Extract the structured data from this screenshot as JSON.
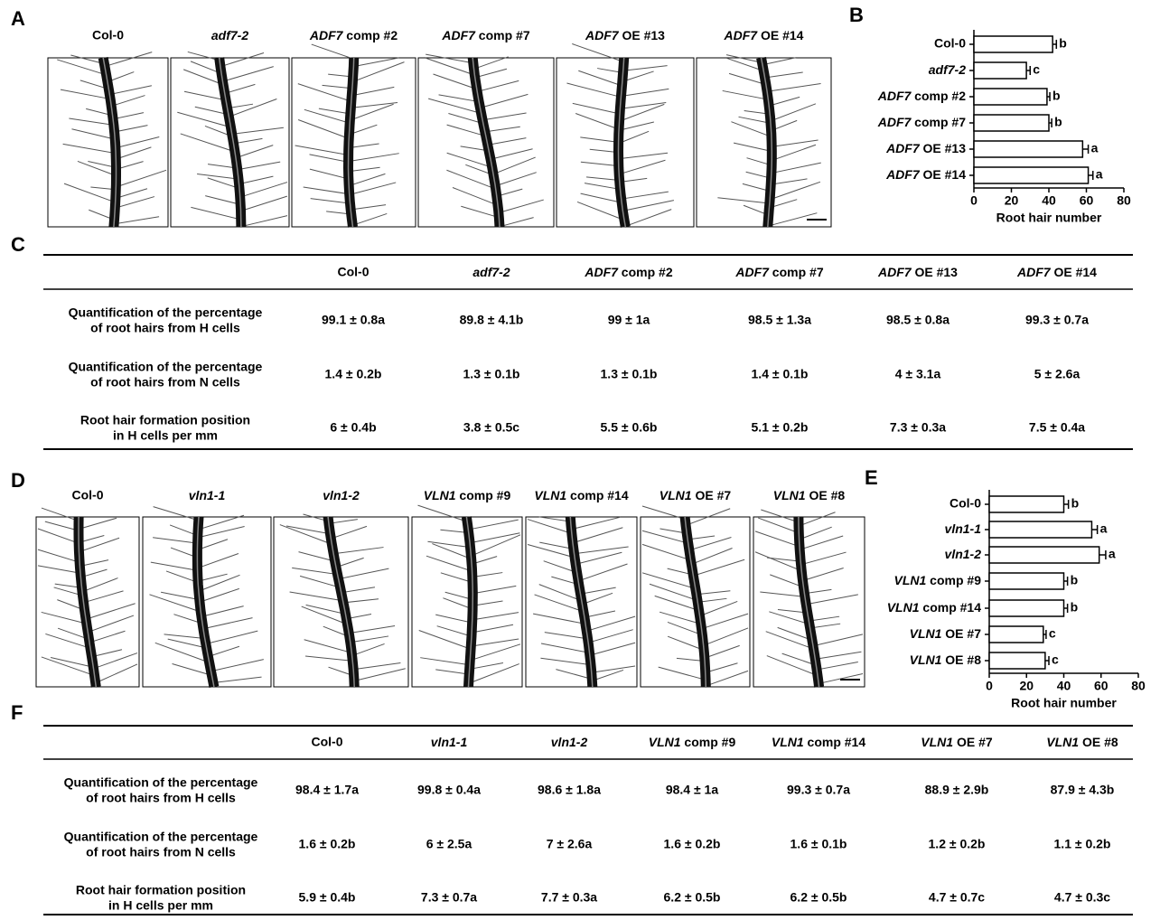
{
  "panel_a": {
    "label": "A",
    "captions": [
      "Col-0",
      "adf7-2",
      "ADF7 comp #2",
      "ADF7 comp #7",
      "ADF7 OE #13",
      "ADF7 OE #14"
    ]
  },
  "panel_b": {
    "label": "B",
    "chart_data": {
      "type": "hbar",
      "categories": [
        "Col-0",
        "adf7-2",
        "ADF7 comp #2",
        "ADF7 comp #7",
        "ADF7 OE #13",
        "ADF7 OE #14"
      ],
      "values": [
        42,
        28,
        39,
        40,
        58,
        61
      ],
      "errors": [
        2,
        2,
        1.5,
        1.5,
        3,
        2.5
      ],
      "letters": [
        "b",
        "c",
        "b",
        "b",
        "a",
        "a"
      ],
      "xlim": [
        0,
        80
      ],
      "xticks": [
        0,
        20,
        40,
        60,
        80
      ],
      "xlabel": "Root hair number",
      "color": "#ffffff"
    }
  },
  "panel_c": {
    "label": "C",
    "table": {
      "header": [
        "Col-0",
        "adf7-2",
        "ADF7 comp #2",
        "ADF7 comp #7",
        "ADF7 OE #13",
        "ADF7 OE #14"
      ],
      "rows": [
        {
          "label": [
            "Quantification of the percentage",
            "of root hairs from H cells"
          ],
          "cells": [
            "99.1 ± 0.8a",
            "89.8 ± 4.1b",
            "99 ± 1a",
            "98.5 ± 1.3a",
            "98.5 ± 0.8a",
            "99.3 ± 0.7a"
          ]
        },
        {
          "label": [
            "Quantification of the percentage",
            "of root hairs from N cells"
          ],
          "cells": [
            "1.4 ± 0.2b",
            "1.3 ± 0.1b",
            "1.3 ± 0.1b",
            "1.4 ± 0.1b",
            "4 ± 3.1a",
            "5 ± 2.6a"
          ]
        },
        {
          "label": [
            "Root hair formation position",
            "in H cells per mm"
          ],
          "cells": [
            "6 ± 0.4b",
            "3.8 ± 0.5c",
            "5.5 ± 0.6b",
            "5.1 ± 0.2b",
            "7.3 ± 0.3a",
            "7.5 ± 0.4a"
          ]
        }
      ]
    }
  },
  "panel_d": {
    "label": "D",
    "captions": [
      "Col-0",
      "vln1-1",
      "vln1-2",
      "VLN1 comp #9",
      "VLN1 comp #14",
      "VLN1 OE #7",
      "VLN1 OE #8"
    ]
  },
  "panel_e": {
    "label": "E",
    "chart_data": {
      "type": "hbar",
      "categories": [
        "Col-0",
        "vln1-1",
        "vln1-2",
        "VLN1 comp #9",
        "VLN1 comp #14",
        "VLN1 OE #7",
        "VLN1 OE #8"
      ],
      "values": [
        40,
        55,
        59,
        40,
        40,
        29,
        30
      ],
      "errors": [
        2.5,
        3,
        3.5,
        2,
        2,
        1.5,
        2
      ],
      "letters": [
        "b",
        "a",
        "a",
        "b",
        "b",
        "c",
        "c"
      ],
      "xlim": [
        0,
        80
      ],
      "xticks": [
        0,
        20,
        40,
        60,
        80
      ],
      "xlabel": "Root hair number",
      "color": "#ffffff"
    }
  },
  "panel_f": {
    "label": "F",
    "table": {
      "header": [
        "Col-0",
        "vln1-1",
        "vln1-2",
        "VLN1 comp #9",
        "VLN1 comp #14",
        "VLN1 OE #7",
        "VLN1 OE #8"
      ],
      "rows": [
        {
          "label": [
            "Quantification of the percentage",
            "of root hairs from H cells"
          ],
          "cells": [
            "98.4 ± 1.7a",
            "99.8 ± 0.4a",
            "98.6 ± 1.8a",
            "98.4 ± 1a",
            "99.3 ± 0.7a",
            "88.9 ± 2.9b",
            "87.9 ± 4.3b"
          ]
        },
        {
          "label": [
            "Quantification of the percentage",
            "of root hairs from N cells"
          ],
          "cells": [
            "1.6 ± 0.2b",
            "6 ± 2.5a",
            "7 ± 2.6a",
            "1.6 ± 0.2b",
            "1.6 ± 0.1b",
            "1.2 ± 0.2b",
            "1.1 ± 0.2b"
          ]
        },
        {
          "label": [
            "Root hair formation position",
            "in H cells per mm"
          ],
          "cells": [
            "5.9 ± 0.4b",
            "7.3 ± 0.7a",
            "7.7 ± 0.3a",
            "6.2 ± 0.5b",
            "6.2 ± 0.5b",
            "4.7 ± 0.7c",
            "4.7 ± 0.3c"
          ]
        }
      ]
    }
  }
}
